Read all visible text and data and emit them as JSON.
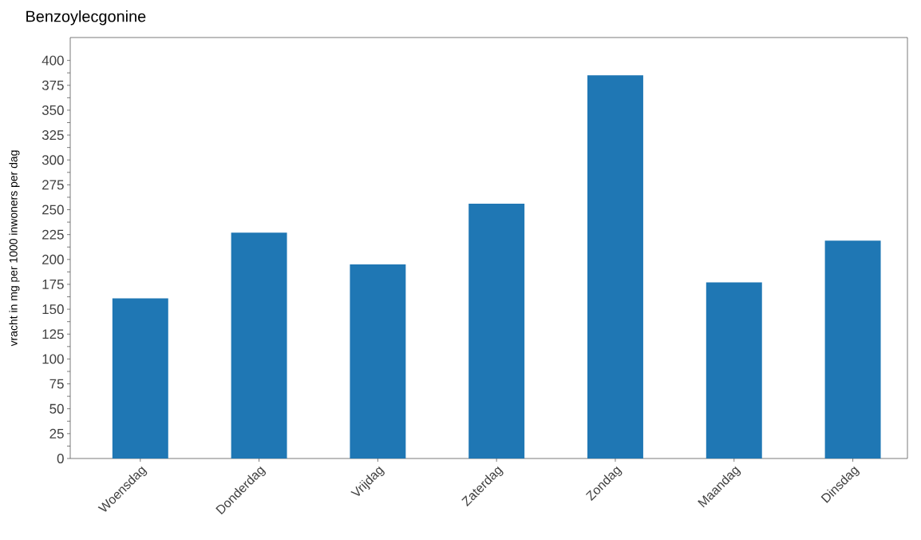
{
  "chart_data": {
    "type": "bar",
    "title": "Benzoylecgonine",
    "ylabel": "vracht in mg per 1000 inwoners per dag",
    "categories": [
      "Woensdag",
      "Donderdag",
      "Vrijdag",
      "Zaterdag",
      "Zondag",
      "Maandag",
      "Dinsdag"
    ],
    "values": [
      161,
      227,
      195,
      256,
      385,
      177,
      219
    ],
    "color": "#1f77b4",
    "ylim": [
      0,
      423
    ],
    "yticks": [
      0,
      {
        "value": 12.5,
        "label": null
      },
      25,
      {
        "value": 37.5,
        "label": null
      },
      50,
      {
        "value": 62.5,
        "label": null
      },
      75,
      {
        "value": 87.5,
        "label": null
      },
      100,
      {
        "value": 112.5,
        "label": null
      },
      125,
      {
        "value": 137.5,
        "label": null
      },
      150,
      {
        "value": 162.5,
        "label": null
      },
      175,
      {
        "value": 187.5,
        "label": null
      },
      200,
      {
        "value": 212.5,
        "label": null
      },
      225,
      {
        "value": 237.5,
        "label": null
      },
      250,
      {
        "value": 262.5,
        "label": null
      },
      275,
      {
        "value": 287.5,
        "label": null
      },
      300,
      {
        "value": 312.5,
        "label": null
      },
      325,
      {
        "value": 337.5,
        "label": null
      },
      350,
      {
        "value": 362.5,
        "label": null
      },
      375,
      {
        "value": 387.5,
        "label": null
      },
      400
    ],
    "grid": false
  }
}
